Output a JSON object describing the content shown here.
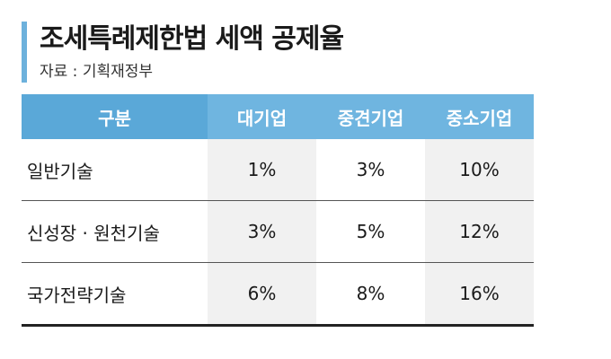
{
  "title": "조세특례제한법 세액 공제율",
  "source": "자료 : 기획재정부",
  "colors": {
    "accent": "#6db1dc",
    "header_bg": "#6fb5e0",
    "shaded_cell": "#f1f1f1"
  },
  "table": {
    "headers": [
      "구분",
      "대기업",
      "중견기업",
      "중소기업"
    ],
    "rows": [
      {
        "label": "일반기술",
        "values": [
          "1%",
          "3%",
          "10%"
        ]
      },
      {
        "label": "신성장 · 원천기술",
        "values": [
          "3%",
          "5%",
          "12%"
        ]
      },
      {
        "label": "국가전략기술",
        "values": [
          "6%",
          "8%",
          "16%"
        ]
      }
    ]
  }
}
